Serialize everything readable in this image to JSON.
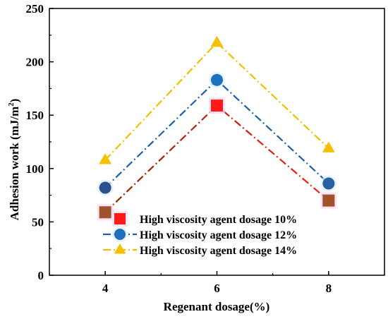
{
  "chart_data": {
    "type": "line",
    "x": [
      4,
      6,
      8
    ],
    "xlabel": "Regenant dosage(%)",
    "ylabel_main": "Adhesion work (mJ/m",
    "ylabel_sup": "2",
    "ylabel_close": ")",
    "xlim": [
      3,
      9
    ],
    "ylim": [
      0,
      250
    ],
    "xticks": [
      4,
      6,
      8
    ],
    "yticks": [
      0,
      50,
      100,
      150,
      200,
      250
    ],
    "grid": false,
    "legend_position": "lower-center",
    "series": [
      {
        "name": "High viscosity agent dosage 10%",
        "values": [
          59,
          159,
          70
        ],
        "marker": "square",
        "line_color_left": "#8b2500",
        "line_color_right": "#ff1a1a",
        "marker_colors": [
          "#a0522d",
          "#ff1a1a",
          "#a0522d"
        ]
      },
      {
        "name": "High viscosity agent dosage 12%",
        "values": [
          82,
          183,
          86
        ],
        "marker": "circle",
        "line_color": "#1f5fa8",
        "marker_colors": [
          "#2c4f8f",
          "#1f6fbf",
          "#2c5f9f"
        ]
      },
      {
        "name": "High viscosity agent dosage 14%",
        "values": [
          108,
          218,
          119
        ],
        "marker": "triangle",
        "line_color": "#f0c000",
        "marker_colors": [
          "#f5c000",
          "#f5c000",
          "#f5c000"
        ]
      }
    ]
  }
}
